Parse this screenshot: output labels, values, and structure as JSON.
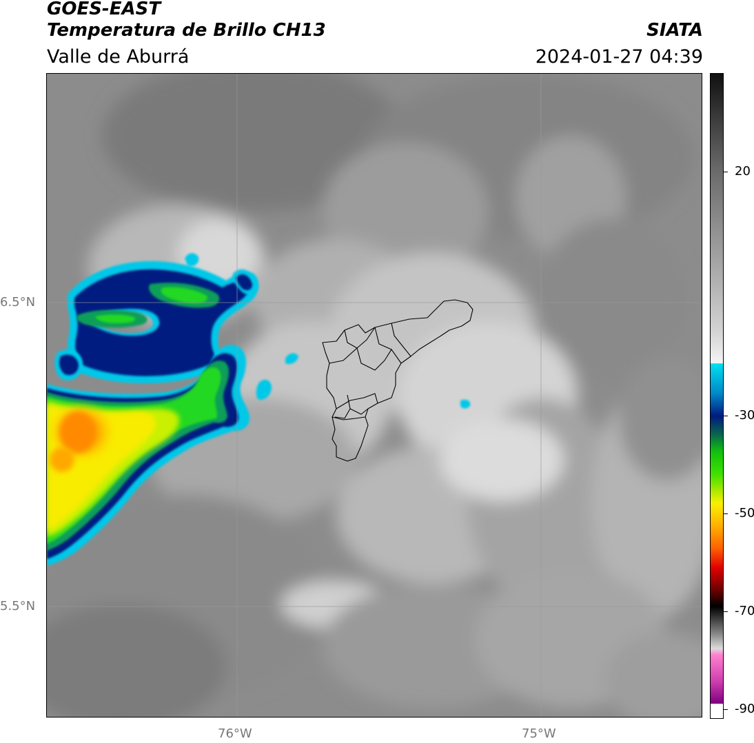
{
  "header": {
    "satellite": "GOES-EAST",
    "product": "Temperatura de Brillo CH13",
    "region": "Valle de Aburrá",
    "organization": "SIATA",
    "timestamp": "2024-01-27 04:39"
  },
  "map": {
    "lat_labels": [
      "6.5°N",
      "5.5°N"
    ],
    "lon_labels": [
      "76°W",
      "75°W"
    ],
    "gridlines": true,
    "boundary": "municipal outlines of Valle de Aburrá (black)"
  },
  "colorbar": {
    "ticks": [
      "20",
      "-30",
      "-50",
      "-70",
      "-90"
    ],
    "colors": {
      "cyan": "#00e0f0",
      "dark_blue": "#001a80",
      "green": "#10e010",
      "yellow": "#f8f000",
      "orange": "#ff8c00",
      "red": "#e00000",
      "black": "#000000",
      "pink": "#ff66cc",
      "purple": "#800080"
    }
  }
}
